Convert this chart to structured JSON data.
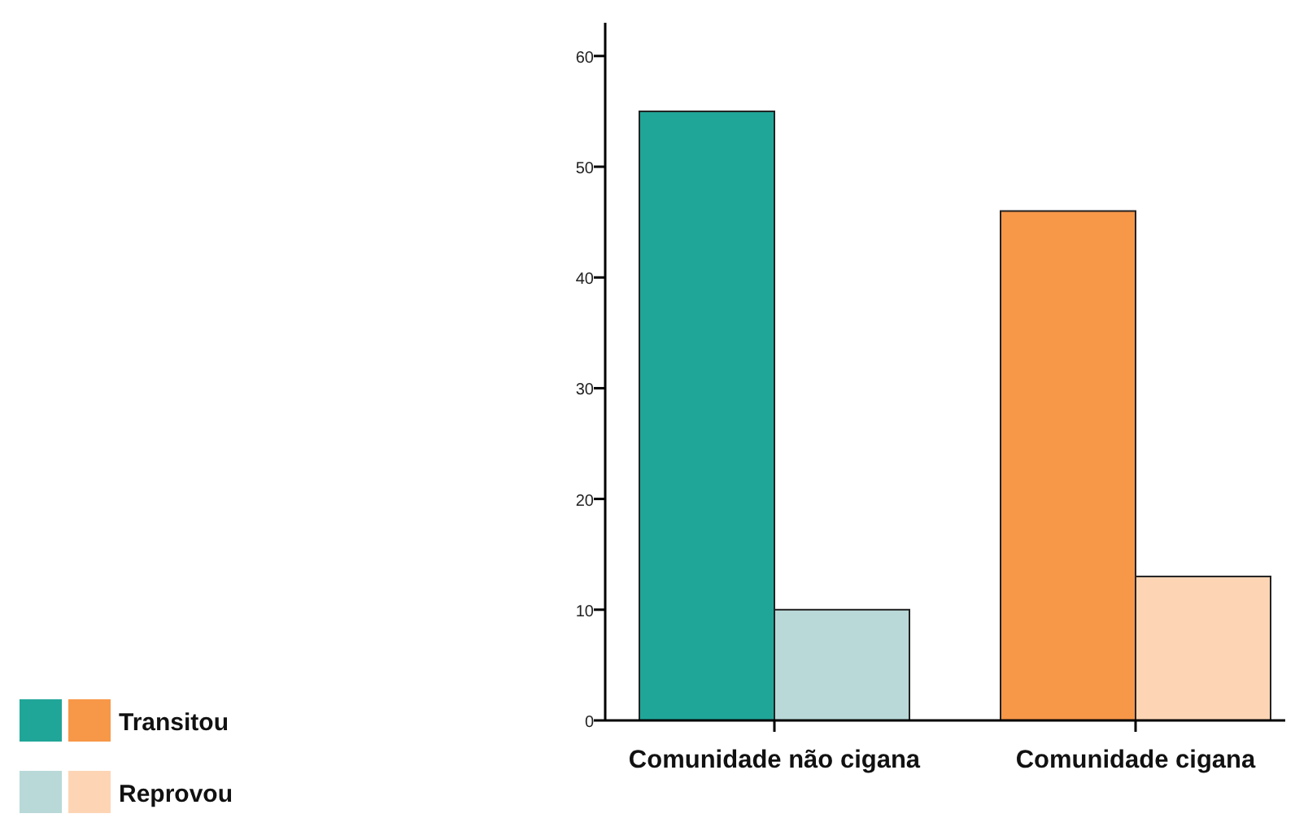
{
  "chart_data": {
    "type": "bar",
    "categories": [
      "Comunidade não cigana",
      "Comunidade cigana"
    ],
    "series": [
      {
        "name": "Transitou",
        "colors": [
          "#20a698",
          "#f79748"
        ],
        "values": [
          55,
          46
        ]
      },
      {
        "name": "Reprovou",
        "colors": [
          "#b8d9d7",
          "#fdd5b5"
        ],
        "values": [
          10,
          13
        ]
      }
    ],
    "ylim": [
      0,
      63
    ],
    "yticks": [
      0,
      10,
      20,
      30,
      40,
      50,
      60
    ],
    "grid": false,
    "legend": "bottom left"
  }
}
